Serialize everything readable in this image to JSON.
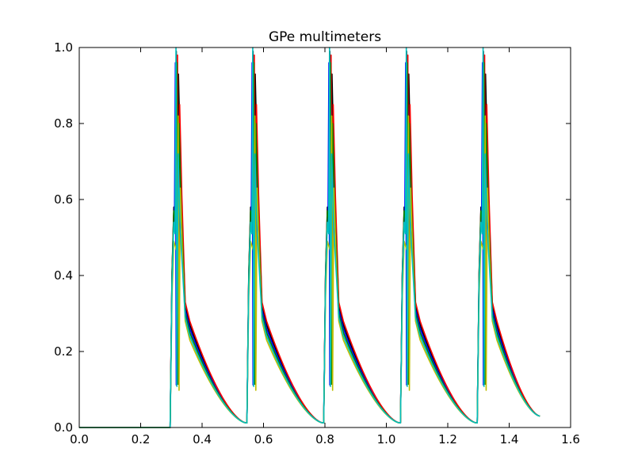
{
  "chart_data": {
    "type": "line",
    "title": "GPe multimeters",
    "xlabel": "",
    "ylabel": "",
    "xlim": [
      0.0,
      1.6
    ],
    "ylim": [
      0.0,
      1.0
    ],
    "xticks": [
      "0.0",
      "0.2",
      "0.4",
      "0.6",
      "0.8",
      "1.0",
      "1.2",
      "1.4",
      "1.6"
    ],
    "yticks": [
      "0.0",
      "0.2",
      "0.4",
      "0.6",
      "0.8",
      "1.0"
    ],
    "grid": false,
    "legend": "none",
    "x_end": 1.5,
    "burst_onsets": [
      0.3,
      0.55,
      0.8,
      1.05,
      1.3
    ],
    "series": [
      {
        "color": "#000000",
        "plateau": 0.58,
        "peak": 0.99,
        "second_peak": 0.93,
        "peak_offset": 0.016,
        "tail": 0.27
      },
      {
        "color": "#0000ff",
        "plateau": 0.56,
        "peak": 0.96,
        "second_peak": 0.86,
        "peak_offset": 0.013,
        "tail": 0.26
      },
      {
        "color": "#ff0000",
        "plateau": 0.57,
        "peak": 0.98,
        "second_peak": 0.85,
        "peak_offset": 0.02,
        "tail": 0.28
      },
      {
        "color": "#008000",
        "plateau": 0.57,
        "peak": 0.96,
        "second_peak": 0.8,
        "peak_offset": 0.018,
        "tail": 0.25
      },
      {
        "color": "#bfbf00",
        "plateau": 0.49,
        "peak": 0.82,
        "second_peak": 0.63,
        "peak_offset": 0.022,
        "tail": 0.23
      },
      {
        "color": "#00bfbf",
        "plateau": 0.54,
        "peak": 1.0,
        "second_peak": 0.72,
        "peak_offset": 0.015,
        "tail": 0.24
      }
    ]
  }
}
